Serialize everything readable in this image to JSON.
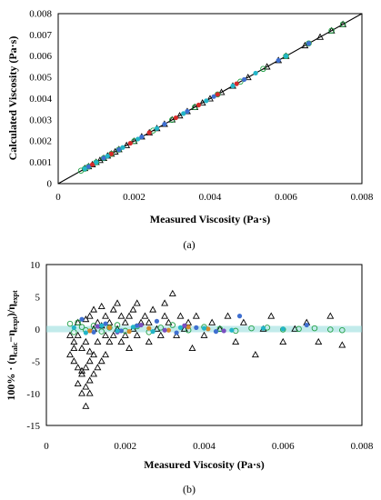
{
  "charts": {
    "a": {
      "panel_label": "(a)",
      "xlabel": "Measured Viscosity (Pa·s)",
      "ylabel": "Calculated Viscosity (Pa·s)",
      "x_ticks": [
        "0",
        "0.002",
        "0.004",
        "0.006",
        "0.008"
      ],
      "y_ticks": [
        "0",
        "0.001",
        "0.002",
        "0.003",
        "0.004",
        "0.005",
        "0.006",
        "0.007",
        "0.008"
      ]
    },
    "b": {
      "panel_label": "(b)",
      "xlabel": "Measured Viscosity (Pa·s)",
      "ylabel": "100% · (η_calc−η_expt)/η_expt",
      "ylabel_parts": [
        "100% · (η",
        "calc",
        "−η",
        "expt",
        ")/η",
        "expt"
      ],
      "x_ticks": [
        "0",
        "0.002",
        "0.004",
        "0.006",
        "0.008"
      ],
      "y_ticks": [
        "10",
        "5",
        "0",
        "-5",
        "-10",
        "-15"
      ]
    }
  },
  "colors": {
    "triangle": "#000000",
    "green_circle": "#22a046",
    "blue_dot": "#3f6fd0",
    "red_dot": "#d62a2a",
    "teal_dot": "#23b5c8",
    "orange_dot": "#d58a2b",
    "purple_dot": "#7a4fc0",
    "parity_line": "#000000"
  },
  "chart_data": [
    {
      "type": "scatter",
      "xlim": [
        0,
        0.008
      ],
      "ylim": [
        0,
        0.008
      ],
      "grid": false,
      "reference_line": {
        "x": [
          0,
          0.008
        ],
        "y": [
          0,
          0.008
        ]
      },
      "series": [
        {
          "marker": "triangle-open",
          "color_key": "triangle",
          "x": [
            0.0007,
            0.0008,
            0.0009,
            0.001,
            0.0011,
            0.0012,
            0.0013,
            0.0014,
            0.0015,
            0.0016,
            0.0018,
            0.002,
            0.0022,
            0.0024,
            0.0026,
            0.0028,
            0.003,
            0.0032,
            0.0034,
            0.0036,
            0.0038,
            0.004,
            0.0043,
            0.0046,
            0.005,
            0.0055,
            0.0058,
            0.006,
            0.0065,
            0.0069,
            0.0072,
            0.0075
          ],
          "y": [
            0.00072,
            0.00081,
            0.0009,
            0.00101,
            0.0011,
            0.0012,
            0.00131,
            0.0014,
            0.0015,
            0.00161,
            0.0018,
            0.002,
            0.00221,
            0.0024,
            0.0026,
            0.0028,
            0.00301,
            0.0032,
            0.0034,
            0.0036,
            0.0038,
            0.004,
            0.0043,
            0.0046,
            0.005,
            0.0055,
            0.0058,
            0.006,
            0.0065,
            0.0069,
            0.0072,
            0.0075
          ]
        },
        {
          "marker": "circle-open",
          "color_key": "green_circle",
          "x": [
            0.0006,
            0.0007,
            0.0008,
            0.001,
            0.0012,
            0.0014,
            0.0016,
            0.002,
            0.0025,
            0.003,
            0.0036,
            0.0042,
            0.0048,
            0.0054,
            0.006,
            0.0066,
            0.0072,
            0.0075
          ],
          "y": [
            0.00061,
            0.0007,
            0.0008,
            0.001,
            0.0012,
            0.0014,
            0.0016,
            0.002,
            0.0025,
            0.003,
            0.0036,
            0.0042,
            0.0048,
            0.0054,
            0.006,
            0.0066,
            0.0072,
            0.0075
          ]
        },
        {
          "marker": "dot",
          "color_key": "blue_dot",
          "x": [
            0.0008,
            0.0012,
            0.0016,
            0.0022,
            0.0028,
            0.0034,
            0.0041,
            0.0049,
            0.0058,
            0.0066
          ],
          "y": [
            0.0008,
            0.0012,
            0.0016,
            0.0022,
            0.0028,
            0.0034,
            0.0041,
            0.0049,
            0.0058,
            0.0066
          ]
        },
        {
          "marker": "dot",
          "color_key": "red_dot",
          "x": [
            0.0009,
            0.0014,
            0.0019,
            0.0024,
            0.0031,
            0.0037,
            0.0042,
            0.0047
          ],
          "y": [
            0.0009,
            0.0014,
            0.0019,
            0.0024,
            0.0031,
            0.0037,
            0.0042,
            0.0047
          ]
        },
        {
          "marker": "dot",
          "color_key": "teal_dot",
          "x": [
            0.0007,
            0.001,
            0.0013,
            0.0017,
            0.0021,
            0.0026,
            0.0033,
            0.0039,
            0.0046,
            0.0052,
            0.006
          ],
          "y": [
            0.0007,
            0.001,
            0.0013,
            0.0017,
            0.0021,
            0.0026,
            0.0033,
            0.0039,
            0.0046,
            0.0052,
            0.006
          ]
        }
      ]
    },
    {
      "type": "scatter",
      "xlim": [
        0,
        0.008
      ],
      "ylim": [
        -15,
        10
      ],
      "grid": false,
      "series": [
        {
          "marker": "triangle-open",
          "color_key": "triangle",
          "x": [
            0.0006,
            0.0006,
            0.0007,
            0.0007,
            0.0007,
            0.0008,
            0.0008,
            0.0008,
            0.0008,
            0.0009,
            0.0009,
            0.0009,
            0.0009,
            0.001,
            0.001,
            0.001,
            0.001,
            0.001,
            0.0011,
            0.0011,
            0.0011,
            0.0011,
            0.0011,
            0.0012,
            0.0012,
            0.0012,
            0.0012,
            0.0013,
            0.0013,
            0.0013,
            0.0014,
            0.0014,
            0.0014,
            0.0015,
            0.0015,
            0.0015,
            0.0016,
            0.0016,
            0.0017,
            0.0017,
            0.0018,
            0.0018,
            0.0019,
            0.0019,
            0.002,
            0.002,
            0.0021,
            0.0021,
            0.0022,
            0.0022,
            0.0023,
            0.0023,
            0.0024,
            0.0025,
            0.0026,
            0.0026,
            0.0027,
            0.0028,
            0.0029,
            0.003,
            0.003,
            0.0031,
            0.0032,
            0.0033,
            0.0034,
            0.0035,
            0.0036,
            0.0037,
            0.0038,
            0.004,
            0.0042,
            0.0044,
            0.0046,
            0.0048,
            0.005,
            0.0053,
            0.0055,
            0.0057,
            0.006,
            0.0063,
            0.0066,
            0.0069,
            0.0072,
            0.0075
          ],
          "y": [
            -1,
            -4,
            -2,
            -3,
            -5,
            -6,
            -8.5,
            -1,
            1,
            -7,
            -10,
            -6.5,
            -3,
            -12,
            -9,
            -6,
            -2,
            1.5,
            -8,
            -5,
            -3.5,
            2,
            -10,
            -7,
            -4,
            0,
            3,
            -6,
            -2,
            1,
            -5,
            0.5,
            3.5,
            -4,
            -1,
            2,
            1,
            -2,
            3,
            -1,
            0,
            4,
            -2,
            2,
            1,
            -1,
            2,
            -3,
            0,
            3,
            -1,
            4,
            1,
            2,
            -2,
            1,
            3,
            0,
            -1,
            2,
            4,
            1,
            5.5,
            -1,
            2,
            0,
            1,
            -3,
            2,
            -1,
            1,
            0,
            2,
            -2,
            1,
            -4,
            0,
            2,
            -2,
            0,
            1,
            -2,
            2,
            -2.5
          ]
        },
        {
          "marker": "circle-open",
          "color_key": "green_circle",
          "x": [
            0.0006,
            0.0007,
            0.0008,
            0.0009,
            0.001,
            0.0012,
            0.0014,
            0.0016,
            0.0018,
            0.002,
            0.0023,
            0.0026,
            0.0029,
            0.0032,
            0.0036,
            0.004,
            0.0044,
            0.0048,
            0.0052,
            0.0056,
            0.006,
            0.0064,
            0.0068,
            0.0072,
            0.0075
          ],
          "y": [
            0.8,
            -0.5,
            1,
            0.3,
            -0.2,
            0.5,
            -0.4,
            0.2,
            0.6,
            -0.3,
            0.4,
            -0.5,
            0.2,
            0.6,
            -0.2,
            0.3,
            0,
            -0.3,
            0.1,
            0.2,
            -0.1,
            0,
            0.1,
            -0.1,
            -0.2
          ]
        },
        {
          "marker": "dot",
          "color_key": "blue_dot",
          "x": [
            0.0009,
            0.0012,
            0.0015,
            0.0019,
            0.0023,
            0.0028,
            0.0033,
            0.0038,
            0.0043,
            0.0049,
            0.0066
          ],
          "y": [
            1.5,
            -0.5,
            0.8,
            -0.3,
            0.5,
            1.2,
            -0.6,
            0.2,
            -0.4,
            2,
            0.6
          ]
        },
        {
          "marker": "dot",
          "color_key": "orange_dot",
          "x": [
            0.0011,
            0.0016,
            0.0021,
            0.0026,
            0.0031,
            0.0036,
            0.0041
          ],
          "y": [
            -0.3,
            0.2,
            -0.4,
            0.1,
            -0.2,
            0.3,
            0
          ]
        },
        {
          "marker": "dot",
          "color_key": "purple_dot",
          "x": [
            0.0013,
            0.0018,
            0.0024,
            0.003,
            0.0035,
            0.0045
          ],
          "y": [
            0.4,
            -0.5,
            0.6,
            -0.2,
            0.5,
            -0.3
          ]
        },
        {
          "marker": "dot",
          "color_key": "teal_dot",
          "x": [
            0.0007,
            0.001,
            0.0014,
            0.0018,
            0.0022,
            0.0027,
            0.0034,
            0.004,
            0.0047,
            0.0055,
            0.006
          ],
          "y": [
            0.2,
            -0.6,
            0.5,
            -0.3,
            0.3,
            -0.4,
            0.2,
            0.1,
            -0.2,
            0.1,
            0
          ]
        }
      ]
    }
  ]
}
